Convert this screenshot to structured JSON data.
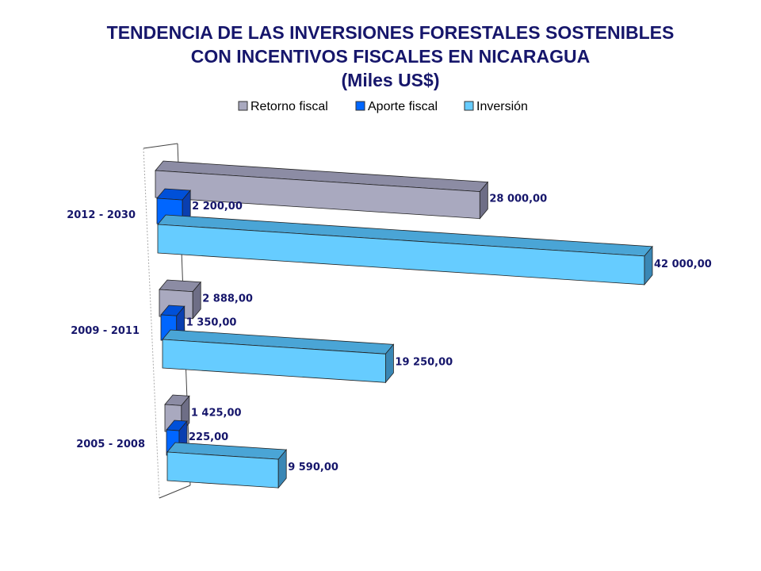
{
  "chart_data": {
    "type": "bar",
    "orientation": "horizontal",
    "three_d": true,
    "title_lines": [
      "TENDENCIA DE LAS INVERSIONES FORESTALES SOSTENIBLES",
      "CON INCENTIVOS FISCALES EN NICARAGUA",
      "(Miles US$)"
    ],
    "categories": [
      "2005 - 2008",
      "2009 - 2011",
      "2012 - 2030"
    ],
    "series": [
      {
        "name": "Retorno fiscal",
        "values": [
          1425,
          2888,
          28000
        ],
        "labels": [
          "1 425,00",
          "2 888,00",
          "28 000,00"
        ],
        "color": "#a9a9bf",
        "side_color": "#6e6e86",
        "top_color": "#8c8ca4"
      },
      {
        "name": "Aporte fiscal",
        "values": [
          225,
          1350,
          2200
        ],
        "labels": [
          "225,00",
          "1 350,00",
          "2 200,00"
        ],
        "color": "#0066ff",
        "side_color": "#0a3fb0",
        "top_color": "#0050d8"
      },
      {
        "name": "Inversión",
        "values": [
          9590,
          19250,
          42000
        ],
        "labels": [
          "9 590,00",
          "19 250,00",
          "42 000,00"
        ],
        "color": "#66ccff",
        "side_color": "#3a87b5",
        "top_color": "#4aa5d6"
      }
    ],
    "legend_position": "top",
    "grid": false,
    "xlim": [
      0,
      42000
    ],
    "text_color": "#16166b"
  }
}
